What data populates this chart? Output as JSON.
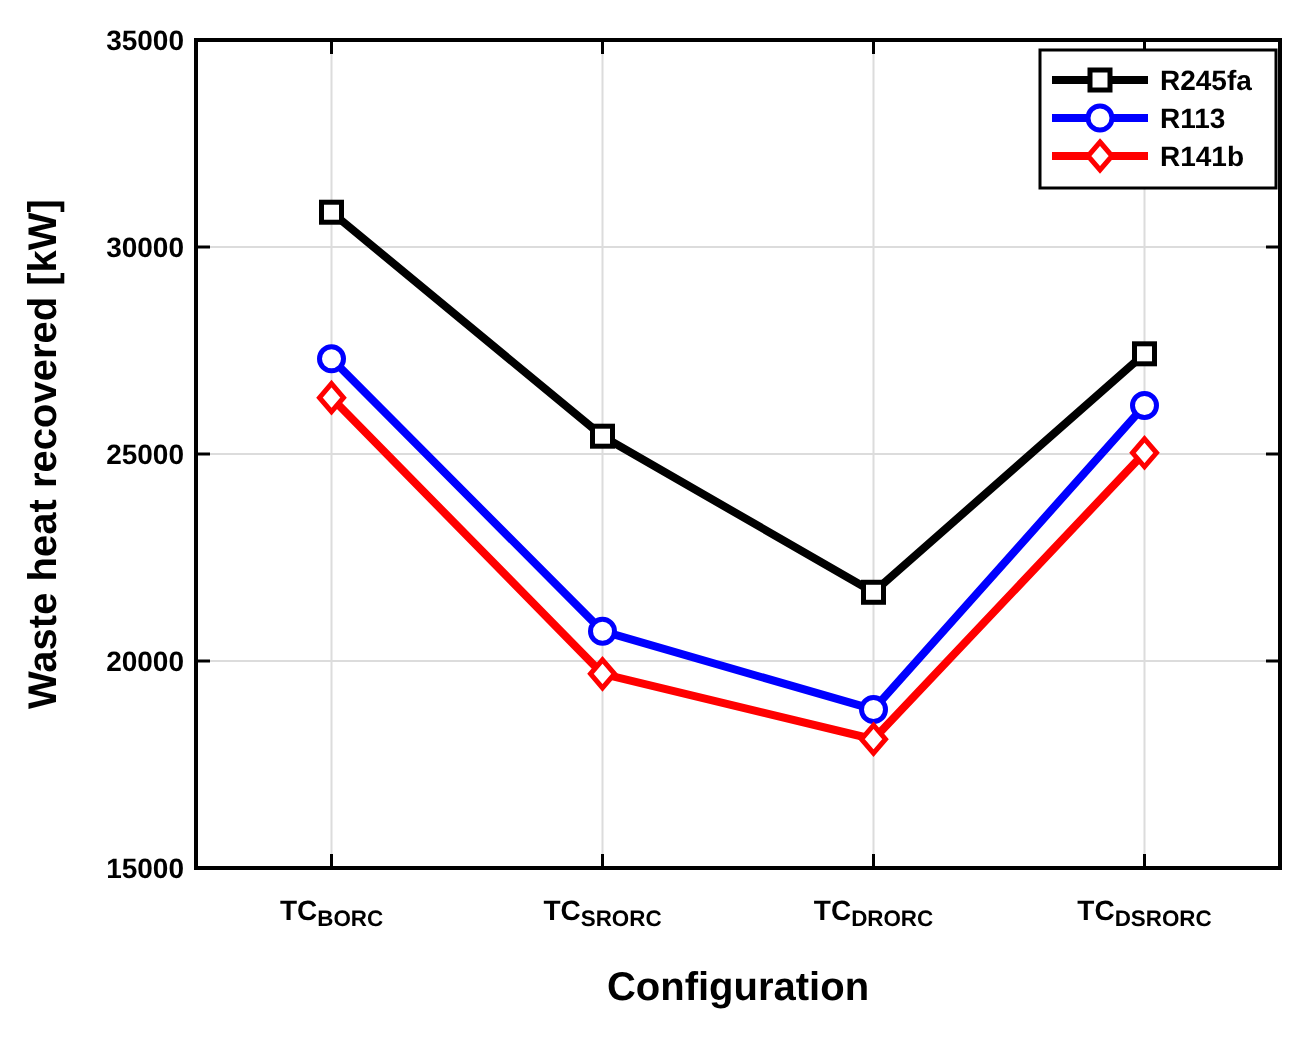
{
  "chart_data": {
    "type": "line",
    "xlabel": "Configuration",
    "ylabel": "Waste heat recovered [kW]",
    "categories": [
      "TC$_{BORC}$",
      "TC$_{SRORC}$",
      "TC$_{DRORC}$",
      "TC$_{DSRORC}$"
    ],
    "series": [
      {
        "name": "R245fa",
        "color": "#000000",
        "marker": "square",
        "values": [
          30840,
          25430,
          21660,
          27420
        ]
      },
      {
        "name": "R113",
        "color": "#0000ff",
        "marker": "circle",
        "values": [
          27300,
          20720,
          18830,
          26170
        ]
      },
      {
        "name": "R141b",
        "color": "#ff0000",
        "marker": "diamond",
        "values": [
          26360,
          19690,
          18110,
          25030
        ]
      }
    ],
    "ylim": [
      15000,
      35000
    ],
    "yticks": [
      15000,
      20000,
      25000,
      30000,
      35000
    ],
    "grid": true,
    "legend": "top right",
    "line_style": "solid"
  }
}
